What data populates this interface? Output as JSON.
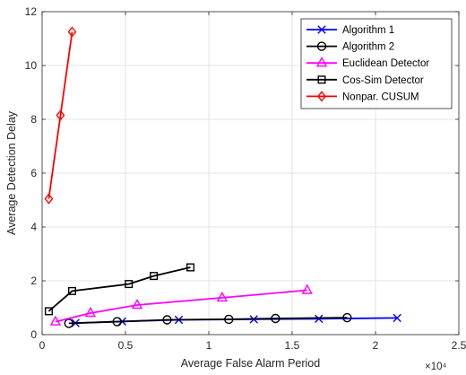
{
  "chart_data": {
    "type": "line",
    "title": "",
    "xlabel": "Average False Alarm Period",
    "ylabel": "Average Detection Delay",
    "x_multiplier_label": "×10⁴",
    "xlim": [
      0,
      25000
    ],
    "ylim": [
      0,
      12
    ],
    "x_ticks": [
      0,
      5000,
      10000,
      15000,
      20000,
      25000
    ],
    "x_tick_labels": [
      "0",
      "0.5",
      "1",
      "1.5",
      "2",
      "2.5"
    ],
    "y_ticks": [
      0,
      2,
      4,
      6,
      8,
      10,
      12
    ],
    "y_tick_labels": [
      "0",
      "2",
      "4",
      "6",
      "8",
      "10",
      "12"
    ],
    "grid": true,
    "legend_position": "top-right",
    "series": [
      {
        "name": "Algorithm 1",
        "color": "#0000ff",
        "marker": "x",
        "x": [
          2000,
          4800,
          8200,
          12700,
          16600,
          21300
        ],
        "y": [
          0.43,
          0.49,
          0.55,
          0.57,
          0.59,
          0.62
        ]
      },
      {
        "name": "Algorithm 2",
        "color": "#000000",
        "marker": "circle",
        "x": [
          1600,
          4500,
          7500,
          11200,
          14000,
          18300
        ],
        "y": [
          0.42,
          0.48,
          0.55,
          0.57,
          0.6,
          0.63
        ]
      },
      {
        "name": "Euclidean Detector",
        "color": "#ff00ff",
        "marker": "triangle",
        "x": [
          800,
          2900,
          5700,
          10800,
          15900
        ],
        "y": [
          0.48,
          0.8,
          1.1,
          1.37,
          1.65
        ]
      },
      {
        "name": "Cos-Sim Detector",
        "color": "#000000",
        "marker": "square",
        "x": [
          400,
          1800,
          5200,
          6700,
          8900
        ],
        "y": [
          0.87,
          1.62,
          1.88,
          2.18,
          2.5
        ]
      },
      {
        "name": "Nonpar. CUSUM",
        "color": "#ff0000",
        "marker": "diamond",
        "x": [
          400,
          1100,
          1800
        ],
        "y": [
          5.05,
          8.15,
          11.25
        ]
      }
    ]
  }
}
